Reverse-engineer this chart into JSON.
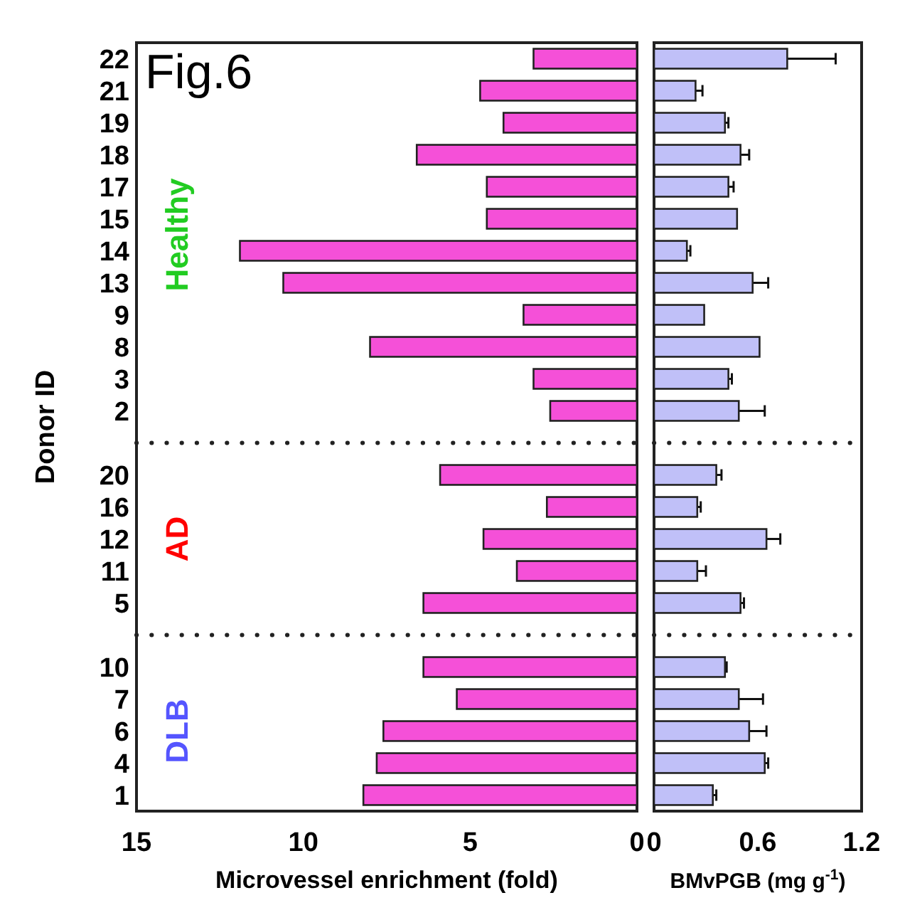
{
  "chart_data": [
    {
      "type": "bar",
      "orientation": "horizontal",
      "title": "Fig.6",
      "xlabel": "Microvessel enrichment (fold)",
      "ylabel": "Donor ID",
      "categories": [
        "22",
        "21",
        "19",
        "18",
        "17",
        "15",
        "14",
        "13",
        "9",
        "8",
        "3",
        "2",
        null,
        "20",
        "16",
        "12",
        "11",
        "5",
        null,
        "10",
        "7",
        "6",
        "4",
        "1"
      ],
      "series": [
        {
          "color": "#f550d8",
          "values": [
            3.1,
            4.7,
            4.0,
            6.6,
            4.5,
            4.5,
            11.9,
            10.6,
            3.4,
            8.0,
            3.1,
            2.6,
            null,
            5.9,
            2.7,
            4.6,
            3.6,
            6.4,
            null,
            6.4,
            5.4,
            7.6,
            7.8,
            8.2
          ]
        }
      ],
      "xlim": [
        15,
        0
      ],
      "xticks": [
        15,
        10,
        5,
        0
      ],
      "annotations": [
        "Healthy",
        "AD",
        "DLB"
      ]
    },
    {
      "type": "bar",
      "orientation": "horizontal",
      "xlabel": "BMvPGB (mg g$^{-1}$)",
      "categories": [
        "22",
        "21",
        "19",
        "18",
        "17",
        "15",
        "14",
        "13",
        "9",
        "8",
        "3",
        "2",
        null,
        "20",
        "16",
        "12",
        "11",
        "5",
        null,
        "10",
        "7",
        "6",
        "4",
        "1"
      ],
      "series": [
        {
          "color": "#c0c0f8",
          "values": [
            0.77,
            0.24,
            0.41,
            0.5,
            0.43,
            0.48,
            0.19,
            0.57,
            0.29,
            0.61,
            0.43,
            0.49,
            null,
            0.36,
            0.25,
            0.65,
            0.25,
            0.5,
            null,
            0.41,
            0.49,
            0.55,
            0.64,
            0.34
          ],
          "errors": [
            0.28,
            0.04,
            0.02,
            0.05,
            0.03,
            null,
            0.02,
            0.09,
            null,
            null,
            0.02,
            0.15,
            null,
            0.03,
            0.02,
            0.08,
            0.05,
            0.02,
            null,
            0.01,
            0.14,
            0.1,
            0.02,
            0.02
          ]
        }
      ],
      "xlim": [
        0,
        1.2
      ],
      "xticks": [
        0,
        0.6,
        1.2
      ],
      "tick_labels": "x"
    }
  ]
}
